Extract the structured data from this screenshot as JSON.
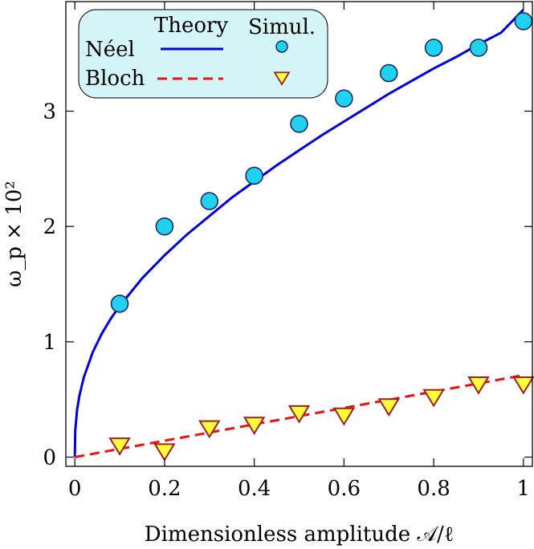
{
  "chart_data": {
    "type": "scatter",
    "xlabel": "Dimensionless amplitude 𝒜/ℓ",
    "ylabel": "ω_p × 10²",
    "xlim": [
      -0.02,
      1.02
    ],
    "ylim": [
      -0.08,
      3.95
    ],
    "x_ticks": [
      0,
      0.2,
      0.4,
      0.6,
      0.8,
      1
    ],
    "x_tick_labels": [
      "0",
      "0.2",
      "0.4",
      "0.6",
      "0.8",
      "1"
    ],
    "y_ticks": [
      0,
      1,
      2,
      3
    ],
    "y_tick_labels": [
      "0",
      "1",
      "2",
      "3"
    ],
    "grid": false,
    "legend": {
      "placement": "top-left",
      "col_headers": [
        "Theory",
        "Simul."
      ],
      "row_labels": [
        "Néel",
        "Bloch"
      ]
    },
    "series": [
      {
        "name": "Néel",
        "kind": "simulation",
        "marker": "circle",
        "color": "#1fd3f0",
        "edge_color": "#1a2a66",
        "x": [
          0.1,
          0.2,
          0.3,
          0.4,
          0.5,
          0.6,
          0.7,
          0.8,
          0.9,
          1.0
        ],
        "y": [
          1.33,
          2.0,
          2.22,
          2.44,
          2.89,
          3.11,
          3.33,
          3.55,
          3.55,
          3.78
        ]
      },
      {
        "name": "Bloch",
        "kind": "simulation",
        "marker": "triangle-down",
        "color": "#ffff3a",
        "edge_color": "#a01f1f",
        "x": [
          0.1,
          0.2,
          0.3,
          0.4,
          0.5,
          0.6,
          0.7,
          0.8,
          0.9,
          1.0
        ],
        "y": [
          0.1,
          0.05,
          0.25,
          0.28,
          0.38,
          0.36,
          0.44,
          0.52,
          0.63,
          0.63
        ]
      },
      {
        "name": "Néel",
        "kind": "theory",
        "line_style": "solid",
        "color": "#0000dd",
        "x": [
          0,
          0.001,
          0.005,
          0.01,
          0.02,
          0.04,
          0.06,
          0.08,
          0.1,
          0.15,
          0.2,
          0.25,
          0.3,
          0.35,
          0.4,
          0.45,
          0.5,
          0.55,
          0.6,
          0.65,
          0.7,
          0.75,
          0.8,
          0.85,
          0.9,
          0.95,
          1.0
        ],
        "y": [
          0,
          0.23,
          0.41,
          0.53,
          0.69,
          0.91,
          1.07,
          1.2,
          1.31,
          1.55,
          1.75,
          1.93,
          2.09,
          2.25,
          2.39,
          2.53,
          2.66,
          2.79,
          2.91,
          3.03,
          3.15,
          3.26,
          3.37,
          3.47,
          3.58,
          3.68,
          3.88
        ]
      },
      {
        "name": "Bloch",
        "kind": "theory",
        "line_style": "dashed",
        "color": "#ee1111",
        "x": [
          0,
          1.0
        ],
        "y": [
          0,
          0.71
        ]
      }
    ]
  }
}
